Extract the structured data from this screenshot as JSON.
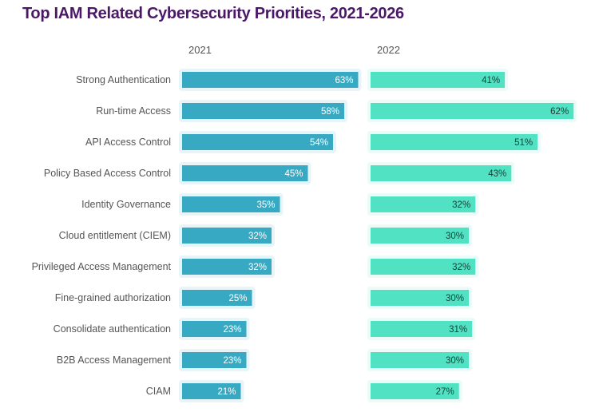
{
  "chart_data": {
    "type": "bar",
    "orientation": "horizontal",
    "title": "Top IAM Related Cybersecurity Priorities, 2021-2026",
    "categories": [
      "Strong Authentication",
      "Run-time Access",
      "API Access Control",
      "Policy Based Access Control",
      "Identity Governance",
      "Cloud entitlement (CIEM)",
      "Privileged Access Management",
      "Fine-grained authorization",
      "Consolidate authentication",
      "B2B Access Management",
      "CIAM"
    ],
    "series": [
      {
        "name": "2021",
        "values": [
          63,
          58,
          54,
          45,
          35,
          32,
          32,
          25,
          23,
          23,
          21
        ],
        "color": "#38a9c3",
        "label_color": "#ffffff"
      },
      {
        "name": "2022",
        "values": [
          41,
          62,
          51,
          43,
          32,
          30,
          32,
          30,
          31,
          30,
          27
        ],
        "color": "#50e2c2",
        "label_color": "#1d3b36"
      }
    ],
    "value_suffix": "%",
    "grid": false
  }
}
